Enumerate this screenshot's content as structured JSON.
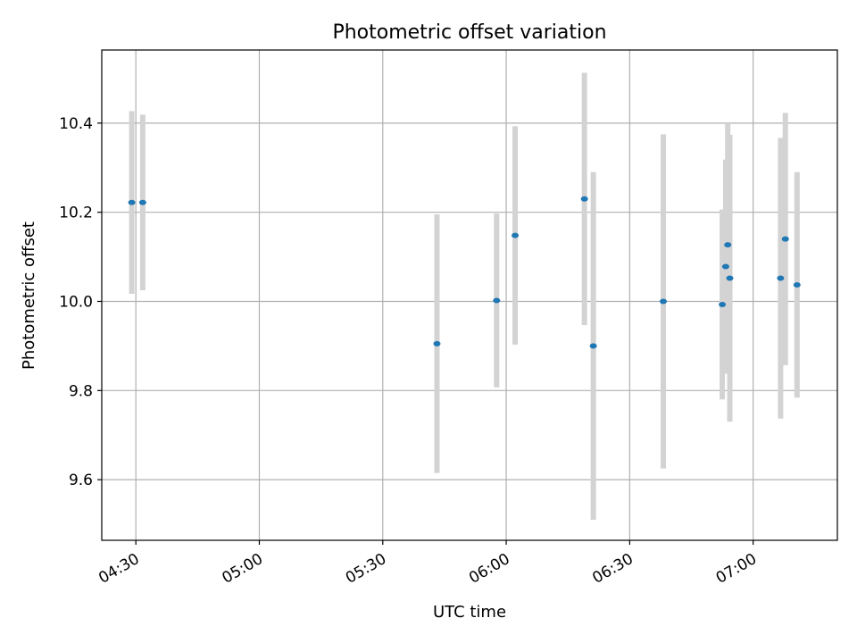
{
  "chart_data": {
    "type": "scatter",
    "title": "Photometric offset variation",
    "xlabel": "UTC time",
    "ylabel": "Photometric offset",
    "x_ticks": [
      "04:30",
      "05:00",
      "05:30",
      "06:00",
      "06:30",
      "07:00"
    ],
    "y_ticks": [
      "9.6",
      "9.8",
      "10.0",
      "10.2",
      "10.4"
    ],
    "xlim": [
      "04:21:43",
      "07:20:28"
    ],
    "ylim": [
      9.464,
      10.564
    ],
    "grid": true,
    "legend": "none",
    "colors": {
      "marker": "#1f77b4",
      "errorbar": "#d3d3d3",
      "grid": "#b0b0b0"
    },
    "points": [
      {
        "x": "04:29:00",
        "y": 10.222,
        "yerr": 0.205
      },
      {
        "x": "04:31:40",
        "y": 10.222,
        "yerr": 0.197
      },
      {
        "x": "05:43:10",
        "y": 9.905,
        "yerr": 0.29
      },
      {
        "x": "05:57:40",
        "y": 10.002,
        "yerr": 0.195
      },
      {
        "x": "06:02:10",
        "y": 10.148,
        "yerr": 0.245
      },
      {
        "x": "06:19:00",
        "y": 10.23,
        "yerr": 0.283
      },
      {
        "x": "06:21:10",
        "y": 9.9,
        "yerr": 0.39
      },
      {
        "x": "06:38:10",
        "y": 10.0,
        "yerr": 0.375
      },
      {
        "x": "06:52:30",
        "y": 9.993,
        "yerr": 0.213
      },
      {
        "x": "06:53:20",
        "y": 10.078,
        "yerr": 0.24
      },
      {
        "x": "06:53:50",
        "y": 10.127,
        "yerr": 0.273
      },
      {
        "x": "06:54:20",
        "y": 10.052,
        "yerr": 0.322
      },
      {
        "x": "07:06:40",
        "y": 10.052,
        "yerr": 0.315
      },
      {
        "x": "07:07:50",
        "y": 10.14,
        "yerr": 0.283
      },
      {
        "x": "07:10:40",
        "y": 10.037,
        "yerr": 0.253
      }
    ]
  }
}
